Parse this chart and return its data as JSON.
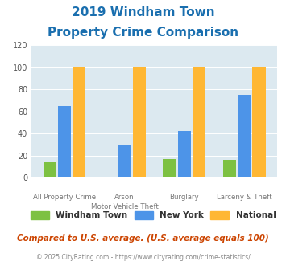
{
  "title_line1": "2019 Windham Town",
  "title_line2": "Property Crime Comparison",
  "title_color": "#1a6faf",
  "cat_labels_row1": [
    "All Property Crime",
    "Arson",
    "Burglary",
    "Larceny & Theft"
  ],
  "cat_labels_row2": [
    "",
    "Motor Vehicle Theft",
    "",
    ""
  ],
  "windham": [
    14,
    0,
    17,
    16
  ],
  "newyork": [
    65,
    30,
    42,
    75
  ],
  "national": [
    100,
    100,
    100,
    100
  ],
  "windham_color": "#7dc142",
  "newyork_color": "#4d94e8",
  "national_color": "#ffb733",
  "bg_color": "#dce9f0",
  "ylim": [
    0,
    120
  ],
  "yticks": [
    0,
    20,
    40,
    60,
    80,
    100,
    120
  ],
  "legend_labels": [
    "Windham Town",
    "New York",
    "National"
  ],
  "footnote1": "Compared to U.S. average. (U.S. average equals 100)",
  "footnote2": "© 2025 CityRating.com - https://www.cityrating.com/crime-statistics/",
  "footnote1_color": "#cc4400",
  "footnote2_color": "#888888"
}
